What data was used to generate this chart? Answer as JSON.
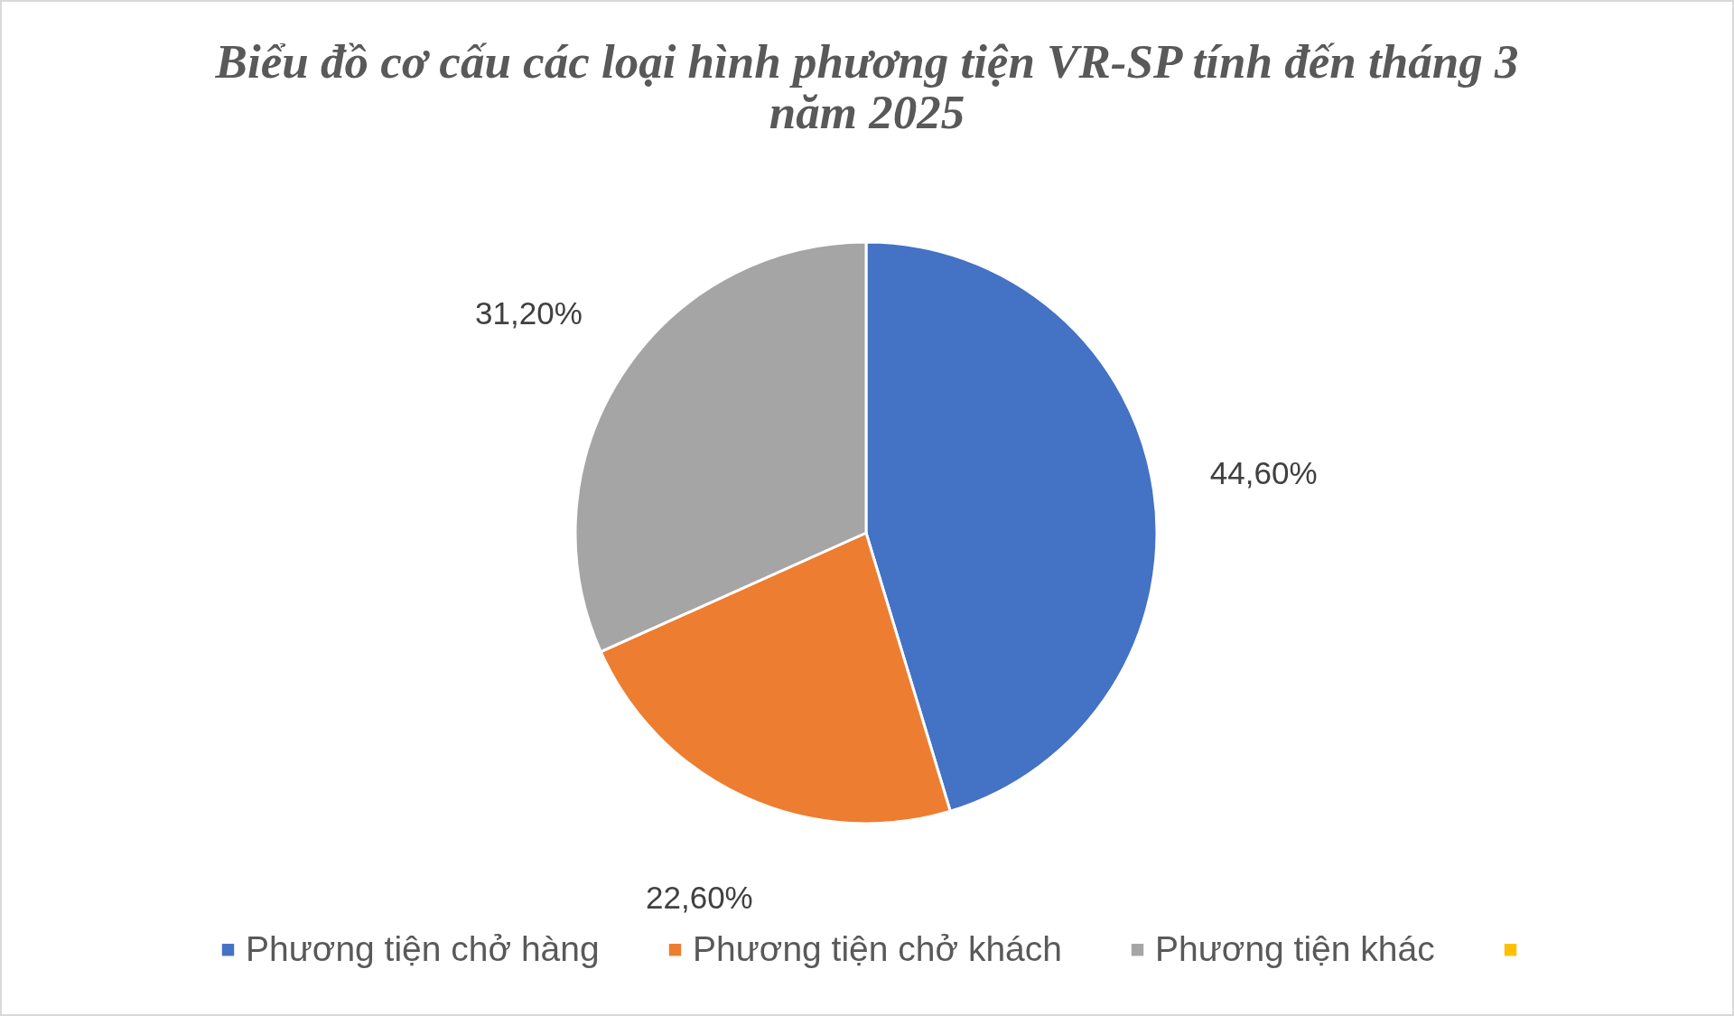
{
  "chart_data": {
    "type": "pie",
    "title": "Biểu đồ cơ cấu các loại hình phương tiện VR-SP tính đến tháng 3 năm  2025",
    "categories": [
      "Phương tiện chở hàng",
      "Phương tiện chở khách",
      "Phương tiện khác",
      null
    ],
    "values": [
      44.6,
      22.6,
      31.2,
      null
    ],
    "colors": [
      "#4472c4",
      "#ed7d31",
      "#a5a5a5",
      "#ffc000"
    ],
    "value_labels": [
      "44,60%",
      "22,60%",
      "31,20%",
      null
    ],
    "legend": "bottom"
  }
}
